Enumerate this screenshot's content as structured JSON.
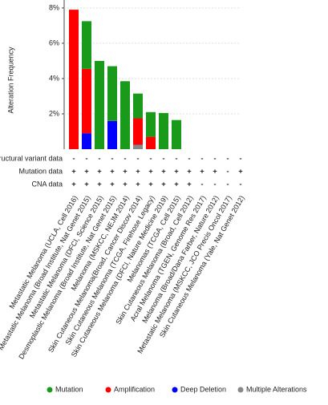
{
  "chart_data": {
    "type": "bar",
    "stacked": true,
    "y_label": "Alteration Frequency",
    "categories": [
      "Metastatic Melanoma (UCLA, Cell 2016)",
      "Metastatic Melanoma (Broad Institute, Nat Genet 2015)",
      "Metastatic Melanoma (DFCI, Science 2015)",
      "Desmoplastic Melanoma (Broad Institute, Nat Genet 2015)",
      "Melanoma (MSKCC, NEJM 2014)",
      "Skin Cutaneous Melanoma(Broad, Cancer Discov 2014)",
      "Skin Cutaneous Melanoma (TCGA, Firehose Legacy)",
      "Skin Cutaneous Melanoma (DFCI, Nature Medicine 2019)",
      "Melanomas (TCGA, Cell 2015)",
      "Skin Cutaneous Melanoma (Broad, Cell 2012)",
      "Acral Melanoma (TGEN, Genome Res 2017)",
      "Melanoma (Broad/Dana Farber, Nature 2012)",
      "Metastatic Melanoma (MSKCC, JCO Precis Oncol 2017)",
      "Skin Cutaneous Melanoma (Yale, Nat Genet 2012)"
    ],
    "series": [
      {
        "name": "Mutation",
        "color": "#1a9a1a",
        "values": [
          0,
          2.7,
          5.0,
          3.1,
          3.85,
          1.4,
          1.4,
          2.05,
          1.65,
          0,
          0,
          0,
          0,
          0
        ]
      },
      {
        "name": "Amplification",
        "color": "#ff0000",
        "values": [
          7.9,
          3.65,
          0,
          0,
          0,
          1.5,
          0.7,
          0,
          0,
          0,
          0,
          0,
          0,
          0
        ]
      },
      {
        "name": "Deep Deletion",
        "color": "#0000ff",
        "values": [
          0,
          0.9,
          0,
          1.6,
          0,
          0,
          0,
          0,
          0,
          0,
          0,
          0,
          0,
          0
        ]
      },
      {
        "name": "Multiple Alterations",
        "color": "#888888",
        "values": [
          0,
          0,
          0,
          0,
          0,
          0.25,
          0,
          0,
          0,
          0,
          0,
          0,
          0,
          0
        ]
      }
    ],
    "ylim": [
      0,
      8.45
    ],
    "yticks": [
      {
        "value": 2,
        "label": "2%"
      },
      {
        "value": 4,
        "label": "4%"
      },
      {
        "value": 6,
        "label": "6%"
      },
      {
        "value": 8,
        "label": "8%"
      }
    ],
    "grid": true,
    "data_rows": [
      {
        "label": "Structural variant data",
        "values": [
          "-",
          "-",
          "-",
          "-",
          "-",
          "-",
          "-",
          "-",
          "-",
          "-",
          "-",
          "-",
          "-",
          "-"
        ]
      },
      {
        "label": "Mutation data",
        "values": [
          "+",
          "+",
          "+",
          "+",
          "+",
          "+",
          "+",
          "+",
          "+",
          "+",
          "+",
          "+",
          "-",
          "+"
        ]
      },
      {
        "label": "CNA data",
        "values": [
          "+",
          "+",
          "+",
          "+",
          "+",
          "+",
          "+",
          "+",
          "+",
          "+",
          "-",
          "-",
          "-",
          "-"
        ]
      }
    ]
  }
}
